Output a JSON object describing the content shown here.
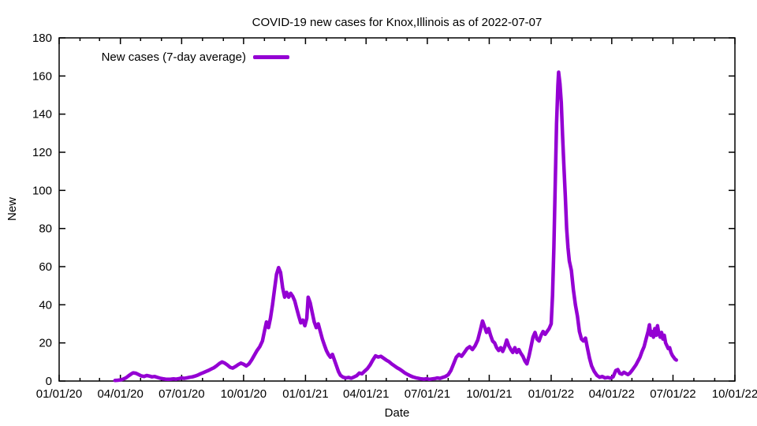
{
  "chart_data": {
    "type": "line",
    "title": "COVID-19 new cases for Knox,Illinois as of 2022-07-07",
    "xlabel": "Date",
    "ylabel": "New",
    "ylim": [
      0,
      180
    ],
    "xlim": [
      "2020-01-01",
      "2022-10-01"
    ],
    "grid": false,
    "background": "#ffffff",
    "axis_color": "#000000",
    "x_tick_labels": [
      "01/01/20",
      "04/01/20",
      "07/01/20",
      "10/01/20",
      "01/01/21",
      "04/01/21",
      "07/01/21",
      "10/01/21",
      "01/01/22",
      "04/01/22",
      "07/01/22",
      "10/01/22"
    ],
    "x_minor_ticks": "monthly",
    "y_tick_labels": [
      "0",
      "20",
      "40",
      "60",
      "80",
      "100",
      "120",
      "140",
      "160",
      "180"
    ],
    "legend": {
      "position": "top-left",
      "entries": [
        {
          "label": "New cases (7-day average)",
          "color": "#9400d3"
        }
      ]
    },
    "series": [
      {
        "name": "New cases (7-day average)",
        "color": "#9400d3",
        "points": [
          [
            "2020-03-24",
            0.3
          ],
          [
            "2020-03-28",
            0.4
          ],
          [
            "2020-04-01",
            0.6
          ],
          [
            "2020-04-05",
            1.0
          ],
          [
            "2020-04-09",
            1.6
          ],
          [
            "2020-04-13",
            2.7
          ],
          [
            "2020-04-17",
            3.7
          ],
          [
            "2020-04-20",
            4.3
          ],
          [
            "2020-04-24",
            4.1
          ],
          [
            "2020-04-28",
            3.4
          ],
          [
            "2020-05-02",
            2.7
          ],
          [
            "2020-05-06",
            2.4
          ],
          [
            "2020-05-10",
            2.9
          ],
          [
            "2020-05-14",
            2.6
          ],
          [
            "2020-05-18",
            2.2
          ],
          [
            "2020-05-22",
            2.4
          ],
          [
            "2020-05-26",
            1.9
          ],
          [
            "2020-05-30",
            1.5
          ],
          [
            "2020-06-03",
            1.2
          ],
          [
            "2020-06-07",
            1.0
          ],
          [
            "2020-06-11",
            0.9
          ],
          [
            "2020-06-15",
            1.0
          ],
          [
            "2020-06-19",
            1.1
          ],
          [
            "2020-06-23",
            1.0
          ],
          [
            "2020-06-27",
            1.3
          ],
          [
            "2020-07-01",
            1.6
          ],
          [
            "2020-07-05",
            1.4
          ],
          [
            "2020-07-09",
            1.7
          ],
          [
            "2020-07-13",
            2.0
          ],
          [
            "2020-07-17",
            2.2
          ],
          [
            "2020-07-21",
            2.6
          ],
          [
            "2020-07-25",
            3.1
          ],
          [
            "2020-07-29",
            3.8
          ],
          [
            "2020-08-02",
            4.4
          ],
          [
            "2020-08-06",
            5.0
          ],
          [
            "2020-08-10",
            5.6
          ],
          [
            "2020-08-14",
            6.3
          ],
          [
            "2020-08-18",
            7.0
          ],
          [
            "2020-08-22",
            8.0
          ],
          [
            "2020-08-26",
            9.2
          ],
          [
            "2020-08-30",
            10.0
          ],
          [
            "2020-09-03",
            9.4
          ],
          [
            "2020-09-07",
            8.4
          ],
          [
            "2020-09-11",
            7.2
          ],
          [
            "2020-09-15",
            6.8
          ],
          [
            "2020-09-19",
            7.6
          ],
          [
            "2020-09-23",
            8.6
          ],
          [
            "2020-09-27",
            9.4
          ],
          [
            "2020-10-01",
            8.8
          ],
          [
            "2020-10-05",
            7.9
          ],
          [
            "2020-10-09",
            9.0
          ],
          [
            "2020-10-13",
            11.0
          ],
          [
            "2020-10-17",
            13.5
          ],
          [
            "2020-10-21",
            16.0
          ],
          [
            "2020-10-25",
            18.0
          ],
          [
            "2020-10-29",
            21.0
          ],
          [
            "2020-11-01",
            26.0
          ],
          [
            "2020-11-04",
            31.0
          ],
          [
            "2020-11-07",
            28.0
          ],
          [
            "2020-11-10",
            33.0
          ],
          [
            "2020-11-13",
            40.0
          ],
          [
            "2020-11-16",
            48.0
          ],
          [
            "2020-11-19",
            56.0
          ],
          [
            "2020-11-22",
            59.5
          ],
          [
            "2020-11-25",
            57.0
          ],
          [
            "2020-11-28",
            49.0
          ],
          [
            "2020-12-01",
            44.0
          ],
          [
            "2020-12-04",
            46.5
          ],
          [
            "2020-12-07",
            44.0
          ],
          [
            "2020-12-10",
            46.0
          ],
          [
            "2020-12-13",
            44.5
          ],
          [
            "2020-12-16",
            42.0
          ],
          [
            "2020-12-19",
            38.0
          ],
          [
            "2020-12-22",
            34.0
          ],
          [
            "2020-12-25",
            30.5
          ],
          [
            "2020-12-28",
            32.0
          ],
          [
            "2020-12-31",
            29.0
          ],
          [
            "2021-01-03",
            33.0
          ],
          [
            "2021-01-05",
            44.0
          ],
          [
            "2021-01-08",
            41.0
          ],
          [
            "2021-01-11",
            36.0
          ],
          [
            "2021-01-14",
            31.0
          ],
          [
            "2021-01-17",
            28.0
          ],
          [
            "2021-01-20",
            30.0
          ],
          [
            "2021-01-23",
            26.0
          ],
          [
            "2021-01-26",
            22.0
          ],
          [
            "2021-01-29",
            19.0
          ],
          [
            "2021-02-01",
            16.0
          ],
          [
            "2021-02-04",
            14.0
          ],
          [
            "2021-02-07",
            12.5
          ],
          [
            "2021-02-10",
            14.0
          ],
          [
            "2021-02-13",
            11.0
          ],
          [
            "2021-02-16",
            8.0
          ],
          [
            "2021-02-19",
            5.0
          ],
          [
            "2021-02-22",
            3.0
          ],
          [
            "2021-02-26",
            2.0
          ],
          [
            "2021-03-02",
            1.6
          ],
          [
            "2021-03-06",
            1.9
          ],
          [
            "2021-03-10",
            1.5
          ],
          [
            "2021-03-14",
            2.1
          ],
          [
            "2021-03-18",
            2.8
          ],
          [
            "2021-03-22",
            4.2
          ],
          [
            "2021-03-26",
            3.8
          ],
          [
            "2021-03-30",
            5.2
          ],
          [
            "2021-04-03",
            6.5
          ],
          [
            "2021-04-07",
            8.5
          ],
          [
            "2021-04-11",
            11.0
          ],
          [
            "2021-04-15",
            13.2
          ],
          [
            "2021-04-19",
            12.6
          ],
          [
            "2021-04-23",
            13.0
          ],
          [
            "2021-04-27",
            12.0
          ],
          [
            "2021-05-01",
            11.0
          ],
          [
            "2021-05-05",
            10.2
          ],
          [
            "2021-05-09",
            9.0
          ],
          [
            "2021-05-13",
            8.0
          ],
          [
            "2021-05-17",
            7.0
          ],
          [
            "2021-05-21",
            6.2
          ],
          [
            "2021-05-25",
            5.2
          ],
          [
            "2021-05-29",
            4.2
          ],
          [
            "2021-06-02",
            3.4
          ],
          [
            "2021-06-06",
            2.7
          ],
          [
            "2021-06-10",
            2.1
          ],
          [
            "2021-06-14",
            1.7
          ],
          [
            "2021-06-18",
            1.4
          ],
          [
            "2021-06-22",
            1.1
          ],
          [
            "2021-06-26",
            1.0
          ],
          [
            "2021-06-30",
            1.2
          ],
          [
            "2021-07-04",
            0.9
          ],
          [
            "2021-07-08",
            1.1
          ],
          [
            "2021-07-12",
            1.3
          ],
          [
            "2021-07-16",
            1.6
          ],
          [
            "2021-07-20",
            1.4
          ],
          [
            "2021-07-24",
            1.9
          ],
          [
            "2021-07-28",
            2.4
          ],
          [
            "2021-08-01",
            3.3
          ],
          [
            "2021-08-05",
            5.5
          ],
          [
            "2021-08-09",
            9.0
          ],
          [
            "2021-08-13",
            12.5
          ],
          [
            "2021-08-17",
            14.0
          ],
          [
            "2021-08-21",
            13.0
          ],
          [
            "2021-08-25",
            15.0
          ],
          [
            "2021-08-29",
            17.0
          ],
          [
            "2021-09-02",
            18.0
          ],
          [
            "2021-09-06",
            16.5
          ],
          [
            "2021-09-10",
            18.5
          ],
          [
            "2021-09-14",
            21.5
          ],
          [
            "2021-09-18",
            27.0
          ],
          [
            "2021-09-21",
            31.5
          ],
          [
            "2021-09-24",
            28.5
          ],
          [
            "2021-09-27",
            25.5
          ],
          [
            "2021-09-30",
            27.5
          ],
          [
            "2021-10-03",
            24.0
          ],
          [
            "2021-10-06",
            21.0
          ],
          [
            "2021-10-09",
            20.0
          ],
          [
            "2021-10-12",
            17.5
          ],
          [
            "2021-10-15",
            16.0
          ],
          [
            "2021-10-18",
            17.5
          ],
          [
            "2021-10-21",
            15.5
          ],
          [
            "2021-10-24",
            18.0
          ],
          [
            "2021-10-27",
            21.5
          ],
          [
            "2021-10-30",
            18.5
          ],
          [
            "2021-11-02",
            16.5
          ],
          [
            "2021-11-05",
            15.0
          ],
          [
            "2021-11-08",
            17.5
          ],
          [
            "2021-11-11",
            15.0
          ],
          [
            "2021-11-14",
            16.5
          ],
          [
            "2021-11-17",
            14.5
          ],
          [
            "2021-11-20",
            13.0
          ],
          [
            "2021-11-23",
            10.5
          ],
          [
            "2021-11-26",
            9.0
          ],
          [
            "2021-11-29",
            13.0
          ],
          [
            "2021-12-02",
            18.0
          ],
          [
            "2021-12-05",
            23.0
          ],
          [
            "2021-12-08",
            25.5
          ],
          [
            "2021-12-11",
            22.0
          ],
          [
            "2021-12-14",
            21.0
          ],
          [
            "2021-12-17",
            24.0
          ],
          [
            "2021-12-20",
            26.0
          ],
          [
            "2021-12-23",
            24.5
          ],
          [
            "2021-12-26",
            26.0
          ],
          [
            "2021-12-29",
            27.5
          ],
          [
            "2022-01-01",
            30.0
          ],
          [
            "2022-01-03",
            45.0
          ],
          [
            "2022-01-05",
            70.0
          ],
          [
            "2022-01-07",
            103.0
          ],
          [
            "2022-01-09",
            135.0
          ],
          [
            "2022-01-11",
            155.0
          ],
          [
            "2022-01-12",
            162.0
          ],
          [
            "2022-01-14",
            156.0
          ],
          [
            "2022-01-16",
            146.0
          ],
          [
            "2022-01-18",
            128.0
          ],
          [
            "2022-01-20",
            112.0
          ],
          [
            "2022-01-22",
            97.0
          ],
          [
            "2022-01-24",
            80.0
          ],
          [
            "2022-01-26",
            70.0
          ],
          [
            "2022-01-28",
            63.0
          ],
          [
            "2022-01-31",
            58.0
          ],
          [
            "2022-02-03",
            48.0
          ],
          [
            "2022-02-06",
            40.0
          ],
          [
            "2022-02-09",
            34.0
          ],
          [
            "2022-02-12",
            26.0
          ],
          [
            "2022-02-15",
            22.0
          ],
          [
            "2022-02-18",
            21.0
          ],
          [
            "2022-02-21",
            22.5
          ],
          [
            "2022-02-24",
            17.0
          ],
          [
            "2022-02-27",
            12.0
          ],
          [
            "2022-03-02",
            8.0
          ],
          [
            "2022-03-06",
            5.0
          ],
          [
            "2022-03-10",
            3.0
          ],
          [
            "2022-03-14",
            2.0
          ],
          [
            "2022-03-18",
            2.4
          ],
          [
            "2022-03-22",
            1.6
          ],
          [
            "2022-03-26",
            1.9
          ],
          [
            "2022-03-30",
            1.5
          ],
          [
            "2022-04-03",
            2.2
          ],
          [
            "2022-04-07",
            5.5
          ],
          [
            "2022-04-10",
            6.0
          ],
          [
            "2022-04-13",
            4.0
          ],
          [
            "2022-04-16",
            3.6
          ],
          [
            "2022-04-19",
            4.6
          ],
          [
            "2022-04-22",
            4.0
          ],
          [
            "2022-04-25",
            3.4
          ],
          [
            "2022-04-28",
            4.2
          ],
          [
            "2022-05-01",
            5.5
          ],
          [
            "2022-05-04",
            7.0
          ],
          [
            "2022-05-07",
            8.5
          ],
          [
            "2022-05-10",
            10.5
          ],
          [
            "2022-05-13",
            12.5
          ],
          [
            "2022-05-16",
            15.5
          ],
          [
            "2022-05-19",
            18.0
          ],
          [
            "2022-05-22",
            22.0
          ],
          [
            "2022-05-25",
            26.0
          ],
          [
            "2022-05-27",
            29.5
          ],
          [
            "2022-05-29",
            24.0
          ],
          [
            "2022-05-31",
            26.0
          ],
          [
            "2022-06-02",
            23.0
          ],
          [
            "2022-06-04",
            27.5
          ],
          [
            "2022-06-06",
            24.0
          ],
          [
            "2022-06-08",
            29.0
          ],
          [
            "2022-06-10",
            25.0
          ],
          [
            "2022-06-12",
            23.0
          ],
          [
            "2022-06-14",
            25.5
          ],
          [
            "2022-06-16",
            22.0
          ],
          [
            "2022-06-18",
            24.0
          ],
          [
            "2022-06-20",
            20.0
          ],
          [
            "2022-06-22",
            18.5
          ],
          [
            "2022-06-24",
            17.0
          ],
          [
            "2022-06-26",
            17.5
          ],
          [
            "2022-06-28",
            15.0
          ],
          [
            "2022-06-30",
            13.5
          ],
          [
            "2022-07-02",
            12.5
          ],
          [
            "2022-07-04",
            11.5
          ],
          [
            "2022-07-06",
            11.0
          ]
        ]
      }
    ]
  }
}
